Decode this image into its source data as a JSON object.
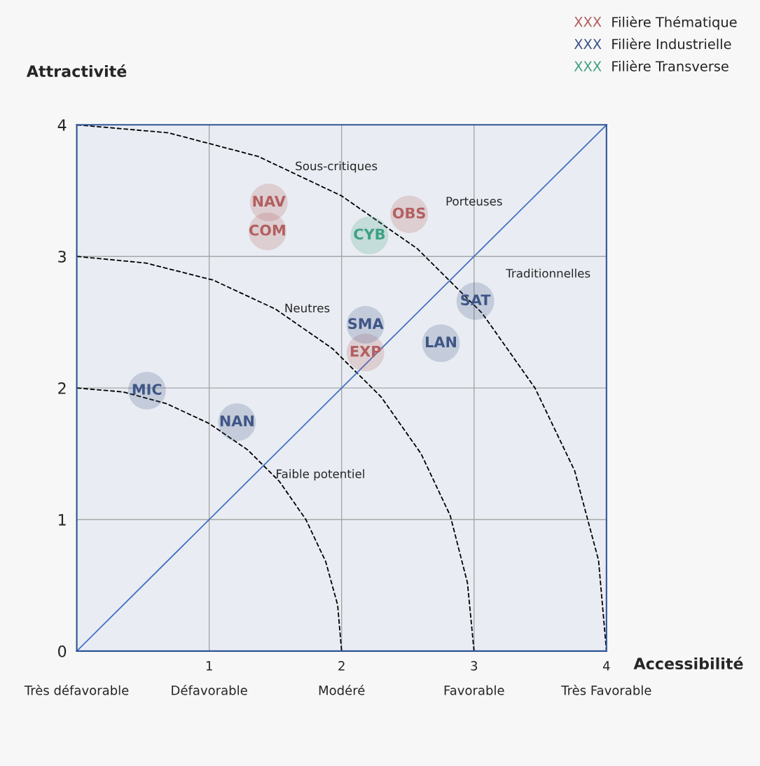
{
  "chart_data": {
    "type": "scatter",
    "xlabel": "Accessibilité",
    "ylabel": "Attractivité",
    "xlim": [
      0,
      4
    ],
    "ylim": [
      0,
      4
    ],
    "xticks": [
      {
        "value": 0,
        "label": "\n\nTrès défavorable"
      },
      {
        "value": 1,
        "label": "1\n\nDéfavorable"
      },
      {
        "value": 2,
        "label": "2\n\nModéré"
      },
      {
        "value": 3,
        "label": "3\n\nFavorable"
      },
      {
        "value": 4,
        "label": "4\n\nTrès Favorable"
      }
    ],
    "yticks": [
      0,
      1,
      2,
      3,
      4
    ],
    "grid": true,
    "series": [
      {
        "name": "XXX Filière Thématique",
        "color": "#b35f5f",
        "marker": "circle",
        "x": [
          1.45,
          1.44,
          2.51,
          2.18
        ],
        "values": [
          3.41,
          3.19,
          3.32,
          2.27
        ],
        "value_labels": [
          "NAV",
          "COM",
          "OBS",
          "EXP"
        ]
      },
      {
        "name": "XXX Filière Industrielle",
        "color": "#3f5687",
        "marker": "circle",
        "x": [
          3.01,
          2.75,
          2.18,
          0.53,
          1.21
        ],
        "values": [
          2.66,
          2.34,
          2.48,
          1.98,
          1.74
        ],
        "value_labels": [
          "SAT",
          "LAN",
          "SMA",
          "MIC",
          "NAN"
        ]
      },
      {
        "name": "XXX Filière Transverse",
        "color": "#3fa083",
        "marker": "circle",
        "x": [
          2.21
        ],
        "values": [
          3.16
        ],
        "value_labels": [
          "CYB"
        ]
      },
      {
        "type": "line",
        "color": "#000000",
        "line_style": "dashed",
        "x": [
          0,
          0.35,
          0.68,
          1.0,
          1.29,
          1.53,
          1.73,
          1.88,
          1.97,
          2.0
        ],
        "values": [
          2.0,
          1.97,
          1.88,
          1.73,
          1.53,
          1.29,
          1.0,
          0.68,
          0.35,
          0
        ]
      },
      {
        "type": "line",
        "color": "#000000",
        "line_style": "dashed",
        "x": [
          0,
          0.52,
          1.03,
          1.5,
          1.93,
          2.3,
          2.6,
          2.82,
          2.95,
          3.0
        ],
        "values": [
          3.0,
          2.95,
          2.82,
          2.6,
          2.3,
          1.93,
          1.5,
          1.03,
          0.52,
          0
        ]
      },
      {
        "type": "line",
        "color": "#000000",
        "line_style": "dashed",
        "x": [
          0,
          0.69,
          1.37,
          2.0,
          2.57,
          3.06,
          3.46,
          3.76,
          3.94,
          4.0
        ],
        "values": [
          4.0,
          3.94,
          3.76,
          3.46,
          3.06,
          2.57,
          2.0,
          1.37,
          0.69,
          0
        ]
      },
      {
        "type": "line",
        "color": "#4472c4",
        "line_style": "solid",
        "x": [
          0,
          4
        ],
        "values": [
          0,
          4
        ]
      }
    ],
    "annotations": [
      "Sous-critiques",
      "Porteuses",
      "Traditionnelles",
      "Neutres",
      "Faible potentiel"
    ]
  }
}
